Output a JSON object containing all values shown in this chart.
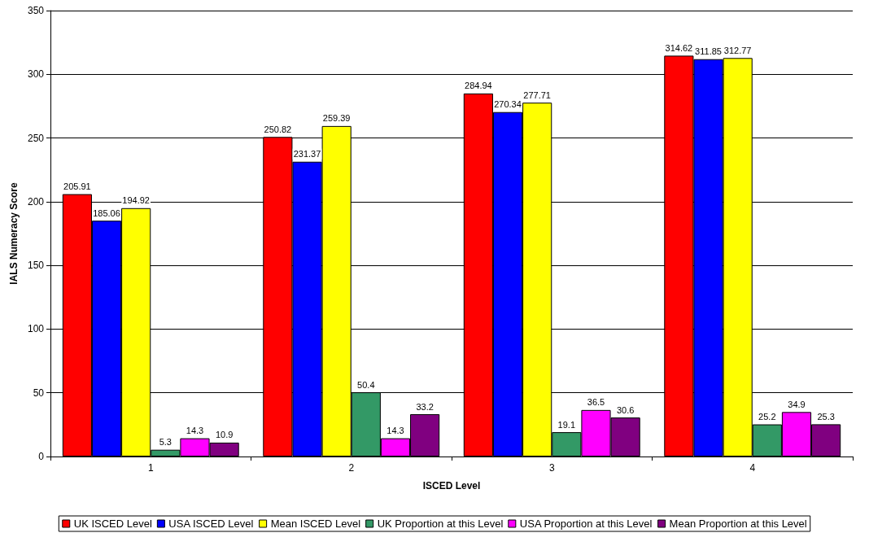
{
  "chart_data": {
    "type": "bar",
    "xlabel": "ISCED Level",
    "ylabel": "IALS Numeracy Score",
    "categories": [
      "1",
      "2",
      "3",
      "4"
    ],
    "series": [
      {
        "name": "UK ISCED Level",
        "color": "#ff0000",
        "values": [
          205.91,
          250.82,
          284.94,
          314.62
        ]
      },
      {
        "name": "USA ISCED Level",
        "color": "#0000ff",
        "values": [
          185.06,
          231.37,
          270.34,
          311.85
        ]
      },
      {
        "name": "Mean ISCED Level",
        "color": "#ffff00",
        "values": [
          194.92,
          259.39,
          277.71,
          312.77
        ]
      },
      {
        "name": "UK Proportion at this Level",
        "color": "#339966",
        "values": [
          5.3,
          50.4,
          19.1,
          25.2
        ]
      },
      {
        "name": "USA Proportion at this Level",
        "color": "#ff00ff",
        "values": [
          14.3,
          14.3,
          36.5,
          34.9
        ]
      },
      {
        "name": "Mean Proportion at this Level",
        "color": "#800080",
        "values": [
          10.9,
          33.2,
          30.6,
          25.3
        ]
      }
    ],
    "ylim": [
      0,
      350
    ],
    "yticks": [
      0,
      50,
      100,
      150,
      200,
      250,
      300,
      350
    ],
    "grid": "y",
    "legend": "bottom",
    "data_labels": true
  }
}
